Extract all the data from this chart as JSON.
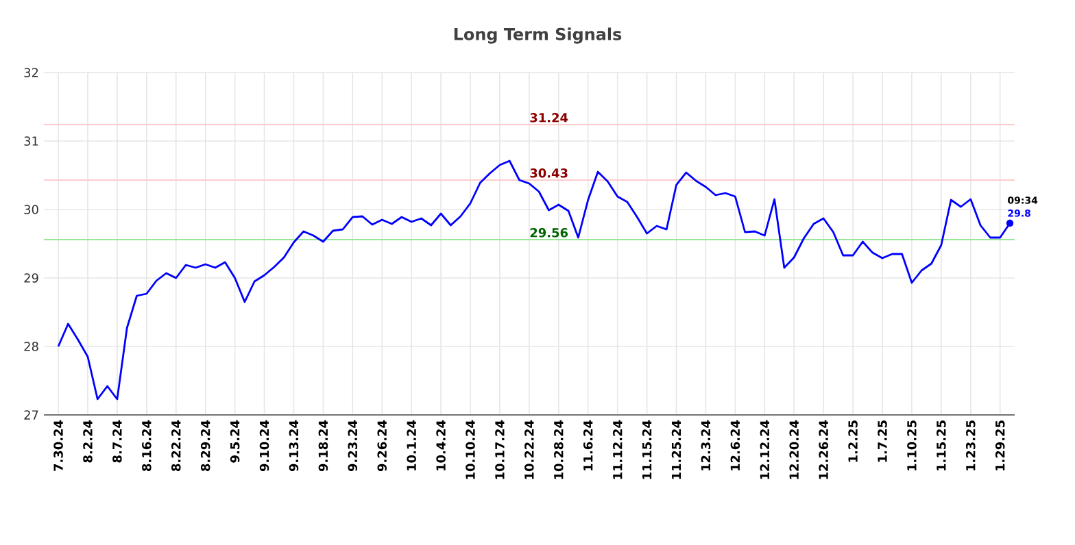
{
  "chart_data": {
    "type": "line",
    "title": "Long Term Signals",
    "categories": [
      "7.30.24",
      null,
      null,
      "8.2.24",
      null,
      null,
      "8.7.24",
      null,
      null,
      "8.16.24",
      null,
      null,
      "8.22.24",
      null,
      null,
      "8.29.24",
      null,
      null,
      "9.5.24",
      null,
      null,
      "9.10.24",
      null,
      null,
      "9.13.24",
      null,
      null,
      "9.18.24",
      null,
      null,
      "9.23.24",
      null,
      null,
      "9.26.24",
      null,
      null,
      "10.1.24",
      null,
      null,
      "10.4.24",
      null,
      null,
      "10.10.24",
      null,
      null,
      "10.17.24",
      null,
      null,
      "10.22.24",
      null,
      null,
      "10.28.24",
      null,
      null,
      "11.6.24",
      null,
      null,
      "11.12.24",
      null,
      null,
      "11.15.24",
      null,
      null,
      "11.25.24",
      null,
      null,
      "12.3.24",
      null,
      null,
      "12.6.24",
      null,
      null,
      "12.12.24",
      null,
      null,
      "12.20.24",
      null,
      null,
      "12.26.24",
      null,
      null,
      "1.2.25",
      null,
      null,
      "1.7.25",
      null,
      null,
      "1.10.25",
      null,
      null,
      "1.15.25",
      null,
      null,
      "1.23.25",
      null,
      null,
      "1.29.25",
      null
    ],
    "series": [
      {
        "color": "#0000ff",
        "values": [
          28.0,
          28.33,
          28.1,
          27.85,
          27.23,
          27.42,
          27.23,
          28.27,
          28.74,
          28.77,
          28.96,
          29.07,
          29.0,
          29.19,
          29.15,
          29.2,
          29.15,
          29.23,
          29.0,
          28.65,
          28.95,
          29.04,
          29.16,
          29.3,
          29.52,
          29.68,
          29.62,
          29.53,
          29.69,
          29.71,
          29.89,
          29.9,
          29.78,
          29.85,
          29.79,
          29.89,
          29.82,
          29.87,
          29.77,
          29.94,
          29.77,
          29.9,
          30.09,
          30.39,
          30.53,
          30.65,
          30.71,
          30.43,
          30.38,
          30.26,
          29.99,
          30.07,
          29.98,
          29.59,
          30.14,
          30.55,
          30.41,
          30.19,
          30.11,
          29.89,
          29.65,
          29.76,
          29.71,
          30.36,
          30.54,
          30.42,
          30.33,
          30.21,
          30.24,
          30.19,
          29.67,
          29.68,
          29.62,
          30.15,
          29.15,
          29.3,
          29.58,
          29.79,
          29.87,
          29.67,
          29.33,
          29.33,
          29.53,
          29.37,
          29.29,
          29.35,
          29.35,
          28.93,
          29.11,
          29.21,
          29.48,
          30.14,
          30.04,
          30.15,
          29.77,
          29.59,
          29.59,
          29.8
        ]
      }
    ],
    "ylim": [
      27,
      32
    ],
    "yticks": [
      27,
      28,
      29,
      30,
      31,
      32
    ],
    "grid": true,
    "marker": "none",
    "line_style": "solid",
    "ref_lines": [
      {
        "axis": "y",
        "value": 31.24,
        "label": "31.24",
        "color": "#ffcccc"
      },
      {
        "axis": "y",
        "value": 30.43,
        "label": "30.43",
        "color": "#ffcccc"
      },
      {
        "axis": "y",
        "value": 29.56,
        "label": "29.56",
        "color": "#99e699"
      }
    ],
    "annotations": [
      "09:34",
      {
        "text": "29.8",
        "y": 29.8
      }
    ]
  }
}
